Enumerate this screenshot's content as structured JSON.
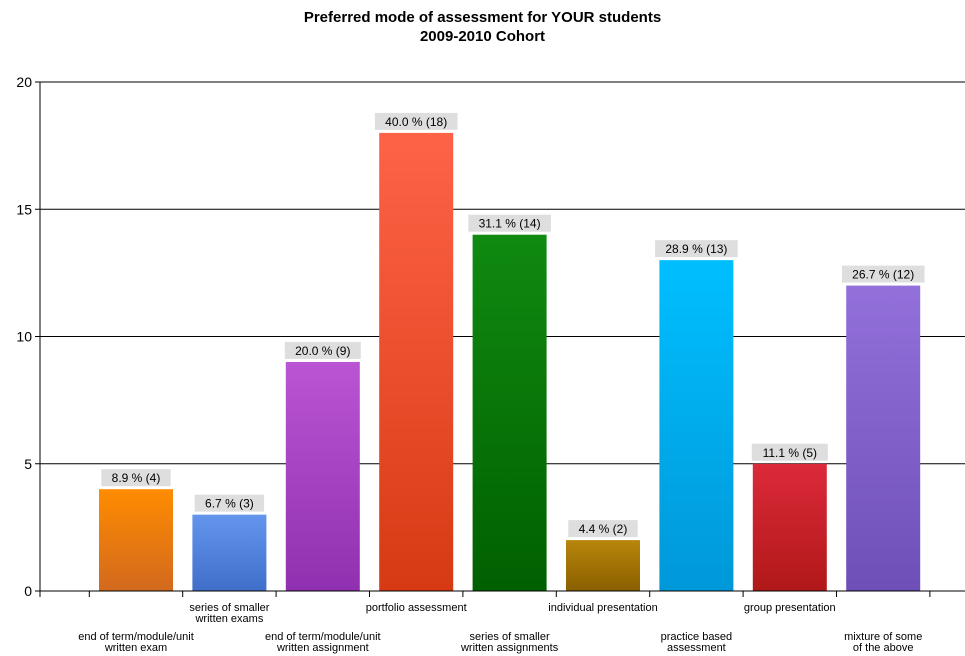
{
  "chart_data": {
    "type": "bar",
    "title": "Preferred mode of assessment for YOUR students",
    "subtitle": "2009-2010 Cohort",
    "xlabel": "",
    "ylabel": "",
    "ylim": [
      0,
      20
    ],
    "yticks": [
      "0",
      "5",
      "10",
      "15",
      "20"
    ],
    "grid": true,
    "legend": "none",
    "categories": [
      [
        "end of term/module/unit",
        "written exam"
      ],
      [
        "series of smaller",
        "written exams"
      ],
      [
        "end of term/module/unit",
        "written assignment"
      ],
      [
        "portfolio assessment"
      ],
      [
        "series of smaller",
        "written assignments"
      ],
      [
        "individual presentation"
      ],
      [
        "practice based",
        "assessment"
      ],
      [
        "group presentation"
      ],
      [
        "mixture of some",
        "of the above"
      ]
    ],
    "values": [
      4,
      3,
      9,
      18,
      14,
      2,
      13,
      5,
      12
    ],
    "data_labels": [
      "8.9 % (4)",
      "6.7 % (3)",
      "20.0 % (9)",
      "40.0 % (18)",
      "31.1 % (14)",
      "4.4 % (2)",
      "28.9 % (13)",
      "11.1 % (5)",
      "26.7 % (12)"
    ],
    "colors": [
      [
        "#ff8c00",
        "#d2691e"
      ],
      [
        "#6495ed",
        "#3f6fc9"
      ],
      [
        "#ba55d3",
        "#9030b0"
      ],
      [
        "#ff6347",
        "#d63a14"
      ],
      [
        "#108a10",
        "#006000"
      ],
      [
        "#b8860b",
        "#8a5f00"
      ],
      [
        "#00bfff",
        "#0098d8"
      ],
      [
        "#dc2a3a",
        "#b01818"
      ],
      [
        "#9370db",
        "#6e4fb8"
      ]
    ]
  }
}
